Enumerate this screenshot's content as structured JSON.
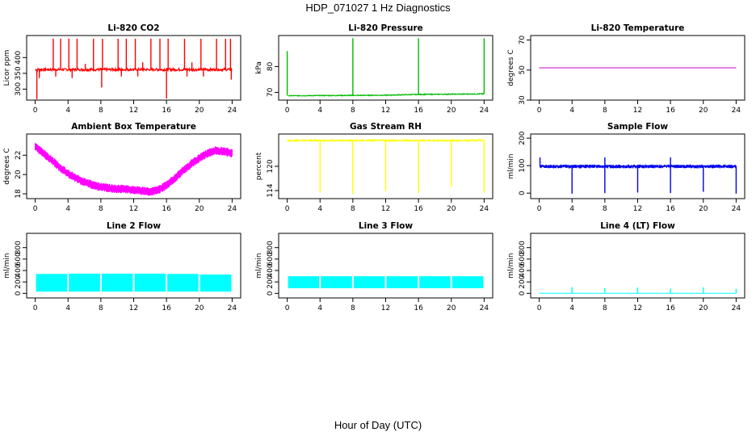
{
  "figure": {
    "title": "HDP_071027  1 Hz Diagnostics",
    "xlabel": "Hour of Day (UTC)"
  },
  "chart_data": [
    {
      "id": "co2",
      "type": "line",
      "title": "Li-820 CO2",
      "ylabel": "Licor ppm",
      "color": "#ff0000",
      "xlim": [
        0,
        24
      ],
      "ylim": [
        265,
        470
      ],
      "xticks": [
        0,
        4,
        8,
        12,
        16,
        20,
        24
      ],
      "yticks": [
        300,
        350,
        400
      ],
      "baseline": 362,
      "noise": 4,
      "spikes": [
        [
          2.2,
          460
        ],
        [
          3.1,
          460
        ],
        [
          4.1,
          460
        ],
        [
          5.1,
          460
        ],
        [
          6.1,
          380
        ],
        [
          7.1,
          460
        ],
        [
          8.2,
          460
        ],
        [
          10.1,
          460
        ],
        [
          11.1,
          460
        ],
        [
          12.2,
          460
        ],
        [
          13.1,
          385
        ],
        [
          14.1,
          460
        ],
        [
          15.2,
          460
        ],
        [
          16.2,
          460
        ],
        [
          18.2,
          460
        ],
        [
          19.1,
          385
        ],
        [
          20.2,
          460
        ],
        [
          22.1,
          460
        ],
        [
          23.2,
          460
        ],
        [
          23.8,
          460
        ]
      ],
      "dips": [
        [
          0.2,
          268
        ],
        [
          0.5,
          335
        ],
        [
          2.5,
          340
        ],
        [
          4.5,
          335
        ],
        [
          8.1,
          305
        ],
        [
          10.5,
          340
        ],
        [
          12.5,
          340
        ],
        [
          16.0,
          270
        ],
        [
          18.5,
          340
        ],
        [
          20.5,
          340
        ],
        [
          23.9,
          330
        ]
      ]
    },
    {
      "id": "pressure",
      "type": "line",
      "title": "Li-820 Pressure",
      "ylabel": "kPa",
      "color": "#00bb00",
      "xlim": [
        0,
        24
      ],
      "ylim": [
        67,
        92
      ],
      "xticks": [
        0,
        4,
        8,
        12,
        16,
        20,
        24
      ],
      "yticks": [
        70,
        80
      ],
      "baseline_segments": [
        [
          0.15,
          68.7
        ],
        [
          12,
          68.9
        ],
        [
          16,
          69.2
        ],
        [
          24,
          69.4
        ]
      ],
      "noise": 0.15,
      "spikes": [
        [
          0.0,
          86
        ],
        [
          8.0,
          91
        ],
        [
          16.0,
          91
        ],
        [
          24.0,
          91
        ]
      ]
    },
    {
      "id": "licor_temp",
      "type": "line",
      "title": "Li-820 Temperature",
      "ylabel": "degrees C",
      "color": "#cc00cc",
      "xlim": [
        0,
        24
      ],
      "ylim": [
        30,
        73
      ],
      "xticks": [
        0,
        4,
        8,
        12,
        16,
        20,
        24
      ],
      "yticks": [
        30,
        50,
        70
      ],
      "value": 51.5
    },
    {
      "id": "box_temp",
      "type": "area",
      "title": "Ambient Box Temperature",
      "ylabel": "degrees C",
      "color": "#ff00ff",
      "xlim": [
        0,
        24
      ],
      "ylim": [
        17.5,
        24.2
      ],
      "xticks": [
        0,
        4,
        8,
        12,
        16,
        20,
        24
      ],
      "yticks": [
        18,
        20,
        22
      ],
      "center": [
        [
          0,
          22.9
        ],
        [
          1,
          22.2
        ],
        [
          2,
          21.5
        ],
        [
          3,
          20.7
        ],
        [
          4,
          20.1
        ],
        [
          5,
          19.6
        ],
        [
          6,
          19.2
        ],
        [
          7,
          18.9
        ],
        [
          8,
          18.7
        ],
        [
          9,
          18.6
        ],
        [
          10,
          18.5
        ],
        [
          11,
          18.5
        ],
        [
          12,
          18.4
        ],
        [
          13,
          18.3
        ],
        [
          14,
          18.2
        ],
        [
          15,
          18.4
        ],
        [
          16,
          18.9
        ],
        [
          17,
          19.6
        ],
        [
          18,
          20.4
        ],
        [
          19,
          21.1
        ],
        [
          20,
          21.7
        ],
        [
          21,
          22.2
        ],
        [
          22,
          22.5
        ],
        [
          23,
          22.4
        ],
        [
          24,
          22.2
        ]
      ],
      "band": 0.45
    },
    {
      "id": "rh",
      "type": "line",
      "title": "Gas Stream RH",
      "ylabel": "percent",
      "color": "#ffff00",
      "xlim": [
        0,
        24
      ],
      "ylim": [
        112,
        128
      ],
      "xticks": [
        0,
        4,
        8,
        12,
        16,
        20,
        24
      ],
      "yticks": [
        114,
        120
      ],
      "baseline": 126.4,
      "noise": 0.2,
      "dips": [
        [
          4.0,
          113.5
        ],
        [
          8.0,
          113.2
        ],
        [
          12.0,
          113.8
        ],
        [
          16.0,
          113.4
        ],
        [
          20.0,
          115.0
        ],
        [
          24.0,
          113.5
        ]
      ]
    },
    {
      "id": "sample_flow",
      "type": "area",
      "title": "Sample Flow",
      "ylabel": "ml/min",
      "color": "#0000ee",
      "xlim": [
        0,
        24
      ],
      "ylim": [
        -20,
        215
      ],
      "xticks": [
        0,
        4,
        8,
        12,
        16,
        20,
        24
      ],
      "yticks": [
        0,
        100,
        200
      ],
      "baseline": 97,
      "band": 10,
      "dips": [
        [
          4.0,
          -2
        ],
        [
          8.0,
          0
        ],
        [
          12.0,
          2
        ],
        [
          16.0,
          0
        ],
        [
          20.0,
          5
        ],
        [
          24.0,
          -2
        ]
      ],
      "spikes": [
        [
          0.1,
          130
        ],
        [
          8.0,
          130
        ],
        [
          16.0,
          130
        ]
      ]
    },
    {
      "id": "line2",
      "type": "area",
      "title": "Line 2 Flow",
      "ylabel": "ml/min",
      "color": "#00ffff",
      "xlim": [
        0,
        24
      ],
      "ylim": [
        -80,
        1050
      ],
      "xticks": [
        0,
        4,
        8,
        12,
        16,
        20,
        24
      ],
      "yticks": [
        0,
        200,
        400,
        600,
        800
      ],
      "bands": [
        [
          0.1,
          3.9,
          30,
          340
        ],
        [
          4.1,
          7.9,
          30,
          345
        ],
        [
          8.1,
          11.9,
          30,
          345
        ],
        [
          12.1,
          15.9,
          30,
          345
        ],
        [
          16.1,
          19.9,
          30,
          340
        ],
        [
          20.1,
          23.9,
          30,
          330
        ]
      ]
    },
    {
      "id": "line3",
      "type": "area",
      "title": "Line 3 Flow",
      "ylabel": "ml/min",
      "color": "#00ffff",
      "xlim": [
        0,
        24
      ],
      "ylim": [
        -80,
        1050
      ],
      "xticks": [
        0,
        4,
        8,
        12,
        16,
        20,
        24
      ],
      "yticks": [
        0,
        200,
        400,
        600,
        800
      ],
      "bands": [
        [
          0.1,
          3.9,
          90,
          300
        ],
        [
          4.1,
          7.9,
          90,
          300
        ],
        [
          8.1,
          11.9,
          90,
          300
        ],
        [
          12.1,
          15.9,
          90,
          300
        ],
        [
          16.1,
          19.9,
          90,
          300
        ],
        [
          20.1,
          23.9,
          90,
          300
        ]
      ]
    },
    {
      "id": "line4",
      "type": "line",
      "title": "Line 4 (LT) Flow",
      "ylabel": "ml/min",
      "color": "#00ffff",
      "xlim": [
        0,
        24
      ],
      "ylim": [
        -80,
        1050
      ],
      "xticks": [
        0,
        4,
        8,
        12,
        16,
        20,
        24
      ],
      "yticks": [
        0,
        200,
        400,
        600,
        800
      ],
      "baseline": 2,
      "spikes": [
        [
          4.0,
          110
        ],
        [
          8.0,
          90
        ],
        [
          12.0,
          100
        ],
        [
          16.0,
          85
        ],
        [
          20.0,
          105
        ],
        [
          24.0,
          80
        ]
      ]
    }
  ]
}
